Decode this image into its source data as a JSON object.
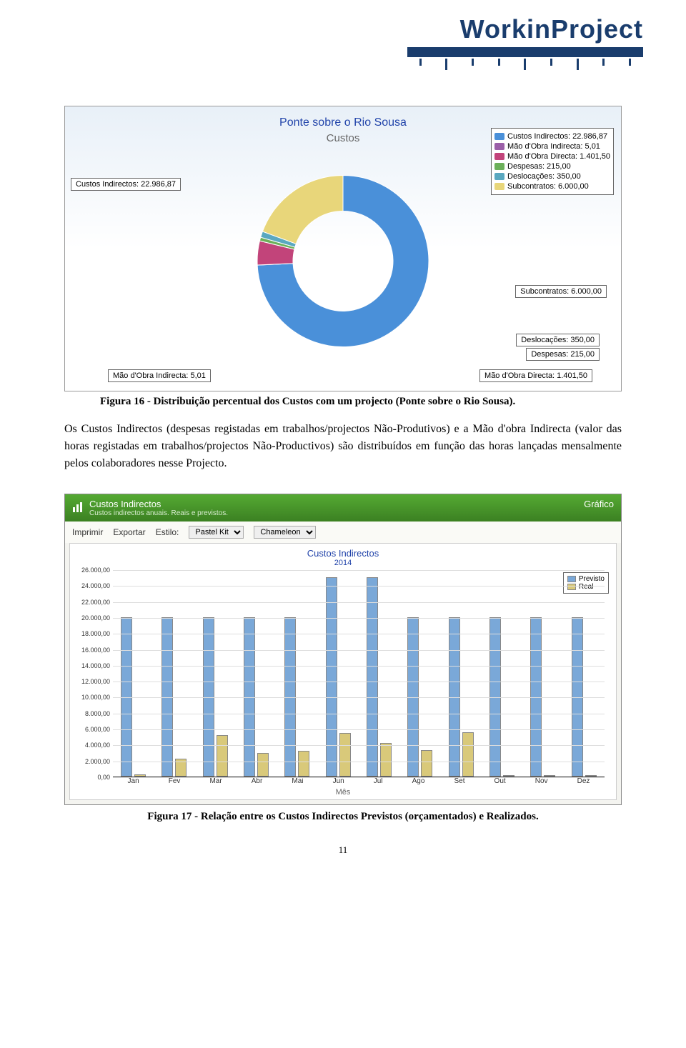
{
  "logo": {
    "text": "WorkinProject"
  },
  "donut": {
    "title": "Ponte sobre o Rio Sousa",
    "subtitle": "Custos",
    "slices": [
      {
        "name": "Custos Indirectos",
        "value": 22986.87,
        "label": "Custos Indirectos: 22.986,87",
        "color": "#4a90d9",
        "pct": 74.23
      },
      {
        "name": "Mão d'Obra Indirecta",
        "value": 5.01,
        "label": "Mão d'Obra Indirecta: 5,01",
        "color": "#9b5fa8",
        "pct": 0.02
      },
      {
        "name": "Mão d'Obra Directa",
        "value": 1401.5,
        "label": "Mão d'Obra Directa: 1.401,50",
        "color": "#c2447a",
        "pct": 4.53
      },
      {
        "name": "Despesas",
        "value": 215.0,
        "label": "Despesas: 215,00",
        "color": "#6cb05a",
        "pct": 0.69
      },
      {
        "name": "Deslocações",
        "value": 350.0,
        "label": "Deslocações: 350,00",
        "color": "#5aa8c0",
        "pct": 1.13
      },
      {
        "name": "Subcontratos",
        "value": 6000.0,
        "label": "Subcontratos: 6.000,00",
        "color": "#e8d67a",
        "pct": 19.38
      }
    ],
    "inner_radius": 70,
    "outer_radius": 120,
    "bg_gradient_top": "#e8f0f8",
    "bg_gradient_bottom": "#ffffff"
  },
  "caption1": "Figura 16 - Distribuição percentual dos Custos com um projecto (Ponte sobre o Rio Sousa).",
  "paragraph": "Os Custos Indirectos (despesas registadas em trabalhos/projectos Não-Produtivos) e a Mão d'obra Indirecta (valor das horas registadas em trabalhos/projectos Não-Productivos) são distribuídos em função das horas lançadas mensalmente pelos colaboradores nesse Projecto.",
  "bar": {
    "window_title": "Custos Indirectos",
    "window_sub": "Custos indirectos anuais. Reais e previstos.",
    "window_right": "Gráfico",
    "toolbar": {
      "print": "Imprimir",
      "export": "Exportar",
      "style_label": "Estilo:",
      "style_value": "Pastel Kit",
      "palette_value": "Chameleon"
    },
    "title": "Custos Indirectos",
    "year": "2014",
    "legend": [
      {
        "label": "Previsto",
        "color": "#7aa8d8"
      },
      {
        "label": "Real",
        "color": "#d9c97a"
      }
    ],
    "xlabel": "Mês",
    "ymax": 26000,
    "ytick_step": 2000,
    "yticks": [
      "0,00",
      "2.000,00",
      "4.000,00",
      "6.000,00",
      "8.000,00",
      "10.000,00",
      "12.000,00",
      "14.000,00",
      "16.000,00",
      "18.000,00",
      "20.000,00",
      "22.000,00",
      "24.000,00",
      "26.000,00"
    ],
    "months": [
      "Jan",
      "Fev",
      "Mar",
      "Abr",
      "Mai",
      "Jun",
      "Jul",
      "Ago",
      "Set",
      "Out",
      "Nov",
      "Dez"
    ],
    "previsto": [
      20000,
      20000,
      20000,
      20000,
      20000,
      25000,
      25000,
      20000,
      20000,
      20000,
      20000,
      20000
    ],
    "real": [
      300,
      2200,
      5200,
      3000,
      3200,
      5500,
      4200,
      3300,
      5600,
      0,
      0,
      0
    ],
    "previsto_color": "#7aa8d8",
    "real_color": "#d9c97a",
    "grid_color": "#dddddd",
    "background": "#ffffff"
  },
  "caption2": "Figura 17 - Relação entre os Custos Indirectos Previstos (orçamentados) e Realizados.",
  "page_number": "11"
}
